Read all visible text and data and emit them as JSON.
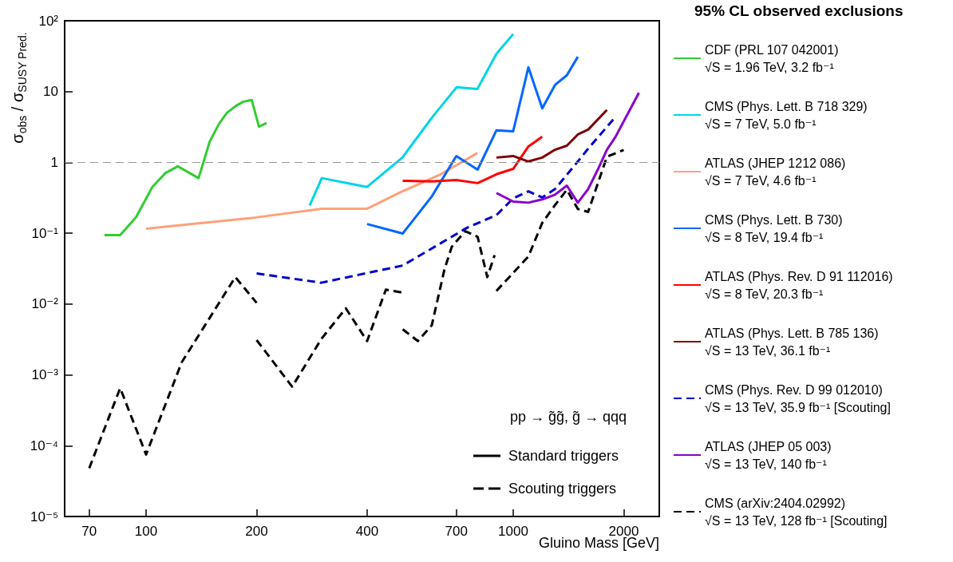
{
  "chart_data": {
    "type": "line",
    "legend_title": "95% CL observed exclusions",
    "xlabel": "Gluino Mass [GeV]",
    "ylabel": "σ$_{obs}$ / σ$_{SUSY Pred.}$",
    "log": "xy",
    "grid": false,
    "legend": "right",
    "marker": "none",
    "line_style": "solid",
    "xlim": [
      60,
      2500
    ],
    "xticks": [
      70,
      100,
      200,
      400,
      700,
      1000,
      2000
    ],
    "ylim": [
      1e-05,
      100
    ],
    "yticks": [
      {
        "value": 1e-05,
        "label": "10⁻⁵"
      },
      {
        "value": 0.0001,
        "label": "10⁻⁴"
      },
      {
        "value": 0.001,
        "label": "10⁻³"
      },
      {
        "value": 0.01,
        "label": "10⁻²"
      },
      {
        "value": 0.1,
        "label": "10⁻¹"
      },
      1,
      10,
      {
        "value": 100,
        "label": "10²"
      }
    ],
    "ref_lines": [
      {
        "axis": "y",
        "value": 1,
        "color": "#999999",
        "line_style": "dashed"
      }
    ],
    "annotations": [
      "pp → g̃g̃, g̃ → qqq",
      "Standard triggers",
      "Scouting triggers"
    ],
    "series": [
      {
        "name": "CDF (PRL 107 042001)\n√S = 1.96 TeV, 3.2 fb⁻¹",
        "color": "#33cc33",
        "x": [
          77,
          85,
          94,
          104,
          113,
          122,
          139,
          149,
          158,
          166,
          175,
          184,
          194,
          203,
          213
        ],
        "values": [
          0.094,
          0.094,
          0.17,
          0.45,
          0.71,
          0.88,
          0.6,
          1.96,
          3.5,
          5.0,
          6.2,
          7.2,
          7.6,
          3.2,
          3.6
        ]
      },
      {
        "name": "CMS (Phys. Lett. B 718 329)\n√S = 7 TeV, 5.0 fb⁻¹",
        "color": "#00d4e6",
        "x": [
          279,
          301,
          400,
          499,
          603,
          701,
          799,
          900,
          1000
        ],
        "values": [
          0.246,
          0.6,
          0.45,
          1.17,
          4.4,
          11.5,
          10.9,
          34,
          65
        ]
      },
      {
        "name": "ATLAS (JHEP 1212 086)\n√S = 7 TeV, 4.6 fb⁻¹",
        "color": "#ffa07a",
        "x": [
          100,
          199,
          301,
          400,
          499,
          628,
          799
        ],
        "values": [
          0.116,
          0.167,
          0.222,
          0.222,
          0.39,
          0.66,
          1.36
        ]
      },
      {
        "name": "CMS (Phys. Lett. B 730)\n√S = 8 TeV, 19.4 fb⁻¹",
        "color": "#0066ff",
        "x": [
          400,
          500,
          600,
          700,
          800,
          900,
          1000,
          1100,
          1200,
          1300,
          1400,
          1500
        ],
        "values": [
          0.135,
          0.099,
          0.33,
          1.23,
          0.79,
          2.83,
          2.75,
          22,
          5.8,
          12.4,
          17,
          31
        ]
      },
      {
        "name": "ATLAS (Phys. Rev. D 91 112016)\n√S = 8 TeV, 20.3 fb⁻¹",
        "color": "#ff0000",
        "x": [
          500,
          600,
          700,
          800,
          900,
          1000,
          1100,
          1200
        ],
        "values": [
          0.55,
          0.54,
          0.565,
          0.51,
          0.68,
          0.81,
          1.68,
          2.3
        ]
      },
      {
        "name": "ATLAS (Phys. Lett. B 785 136)\n√S = 13 TeV, 36.1 fb⁻¹",
        "color": "#800000",
        "x": [
          900,
          1000,
          1100,
          1200,
          1300,
          1400,
          1500,
          1600,
          1800
        ],
        "values": [
          1.17,
          1.23,
          1.03,
          1.17,
          1.51,
          1.72,
          2.48,
          2.9,
          5.5
        ]
      },
      {
        "name": "CMS (Phys. Rev. D 99 012010)\n√S = 13 TeV, 35.9 fb⁻¹ [Scouting]",
        "color": "#0000cc",
        "line_style": "dashed",
        "x": [
          200,
          300,
          500,
          750,
          900,
          1000,
          1100,
          1200,
          1300,
          1500,
          1600,
          1900
        ],
        "values": [
          0.027,
          0.02,
          0.035,
          0.12,
          0.18,
          0.31,
          0.39,
          0.32,
          0.42,
          1.03,
          1.56,
          4.4
        ]
      },
      {
        "name": "ATLAS (JHEP 05 003)\n√S = 13 TeV, 140 fb⁻¹",
        "color": "#8800cc",
        "x": [
          900,
          1000,
          1100,
          1200,
          1300,
          1400,
          1500,
          1600,
          1700,
          1800,
          1900,
          2200
        ],
        "values": [
          0.37,
          0.28,
          0.27,
          0.3,
          0.35,
          0.47,
          0.27,
          0.42,
          0.79,
          1.51,
          2.3,
          9.6
        ]
      },
      {
        "name": "CMS (arXiv:2404.02992)\n√S = 13 TeV, 128 fb⁻¹ [Scouting]",
        "color": "#000000",
        "line_style": "dashed",
        "x": [
          70,
          85,
          100,
          125,
          175,
          200
        ],
        "values": [
          4.8e-05,
          0.00065,
          7.5e-05,
          0.0015,
          0.024,
          0.0104
        ]
      },
      {
        "color": "#000000",
        "line_style": "dashed",
        "x": [
          200,
          250,
          300,
          350,
          400,
          450,
          500
        ],
        "values": [
          0.0031,
          0.00068,
          0.0032,
          0.0087,
          0.003,
          0.016,
          0.0145
        ]
      },
      {
        "color": "#000000",
        "line_style": "dashed",
        "x": [
          500,
          550,
          600,
          650,
          680,
          740,
          800,
          850,
          890
        ],
        "values": [
          0.0044,
          0.003,
          0.005,
          0.031,
          0.064,
          0.107,
          0.089,
          0.024,
          0.049
        ]
      },
      {
        "color": "#000000",
        "line_style": "dashed",
        "x": [
          900,
          1100,
          1200,
          1300,
          1400,
          1500,
          1600,
          1800,
          2000
        ],
        "values": [
          0.0153,
          0.047,
          0.14,
          0.25,
          0.41,
          0.22,
          0.2,
          1.2,
          1.5
        ]
      }
    ]
  }
}
